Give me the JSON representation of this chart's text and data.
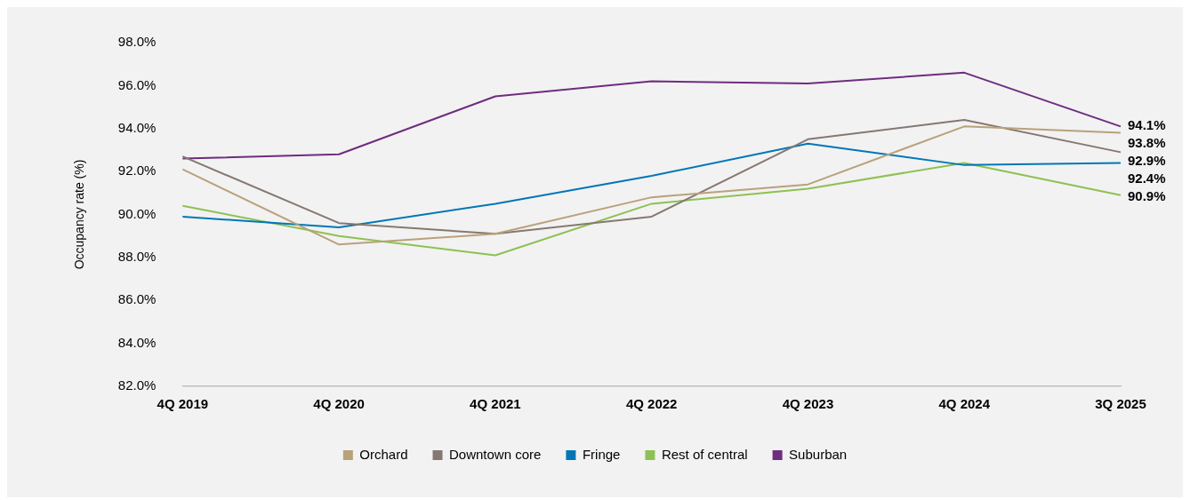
{
  "chart_data": {
    "type": "line",
    "ylabel": "Occupancy rate (%)",
    "categories": [
      "4Q 2019",
      "4Q 2020",
      "4Q 2021",
      "4Q 2022",
      "4Q 2023",
      "4Q 2024",
      "3Q 2025"
    ],
    "ylim": [
      82,
      98
    ],
    "yticks": [
      {
        "value": 82,
        "label": "82.0%"
      },
      {
        "value": 84,
        "label": "84.0%"
      },
      {
        "value": 86,
        "label": "86.0%"
      },
      {
        "value": 88,
        "label": "88.0%"
      },
      {
        "value": 90,
        "label": "90.0%"
      },
      {
        "value": 92,
        "label": "92.0%"
      },
      {
        "value": 94,
        "label": "94.0%"
      },
      {
        "value": 96,
        "label": "96.0%"
      },
      {
        "value": 98,
        "label": "98.0%"
      }
    ],
    "grid": false,
    "legend": "bottom",
    "marker": "none",
    "line_style": "solid",
    "series": [
      {
        "name": "Orchard",
        "color": "#b9a17a",
        "values": [
          92.1,
          88.6,
          89.1,
          90.8,
          91.4,
          94.1,
          93.8
        ],
        "value_labels": [
          null,
          null,
          null,
          null,
          null,
          null,
          "93.8%"
        ]
      },
      {
        "name": "Downtown core",
        "color": "#857872",
        "values": [
          92.7,
          89.6,
          89.1,
          89.9,
          93.5,
          94.4,
          92.9
        ],
        "value_labels": [
          null,
          null,
          null,
          null,
          null,
          null,
          "92.9%"
        ]
      },
      {
        "name": "Fringe",
        "color": "#0077b6",
        "values": [
          89.9,
          89.4,
          90.5,
          91.8,
          93.3,
          92.3,
          92.4
        ],
        "value_labels": [
          null,
          null,
          null,
          null,
          null,
          null,
          "92.4%"
        ]
      },
      {
        "name": "Rest of central",
        "color": "#8dc153",
        "values": [
          90.4,
          89.0,
          88.1,
          90.5,
          91.2,
          92.4,
          90.9
        ],
        "value_labels": [
          null,
          null,
          null,
          null,
          null,
          null,
          "90.9%"
        ]
      },
      {
        "name": "Suburban",
        "color": "#6f2c7f",
        "values": [
          92.6,
          92.8,
          95.5,
          96.2,
          96.1,
          96.6,
          94.1
        ],
        "value_labels": [
          null,
          null,
          null,
          null,
          null,
          null,
          "94.1%"
        ]
      }
    ]
  }
}
